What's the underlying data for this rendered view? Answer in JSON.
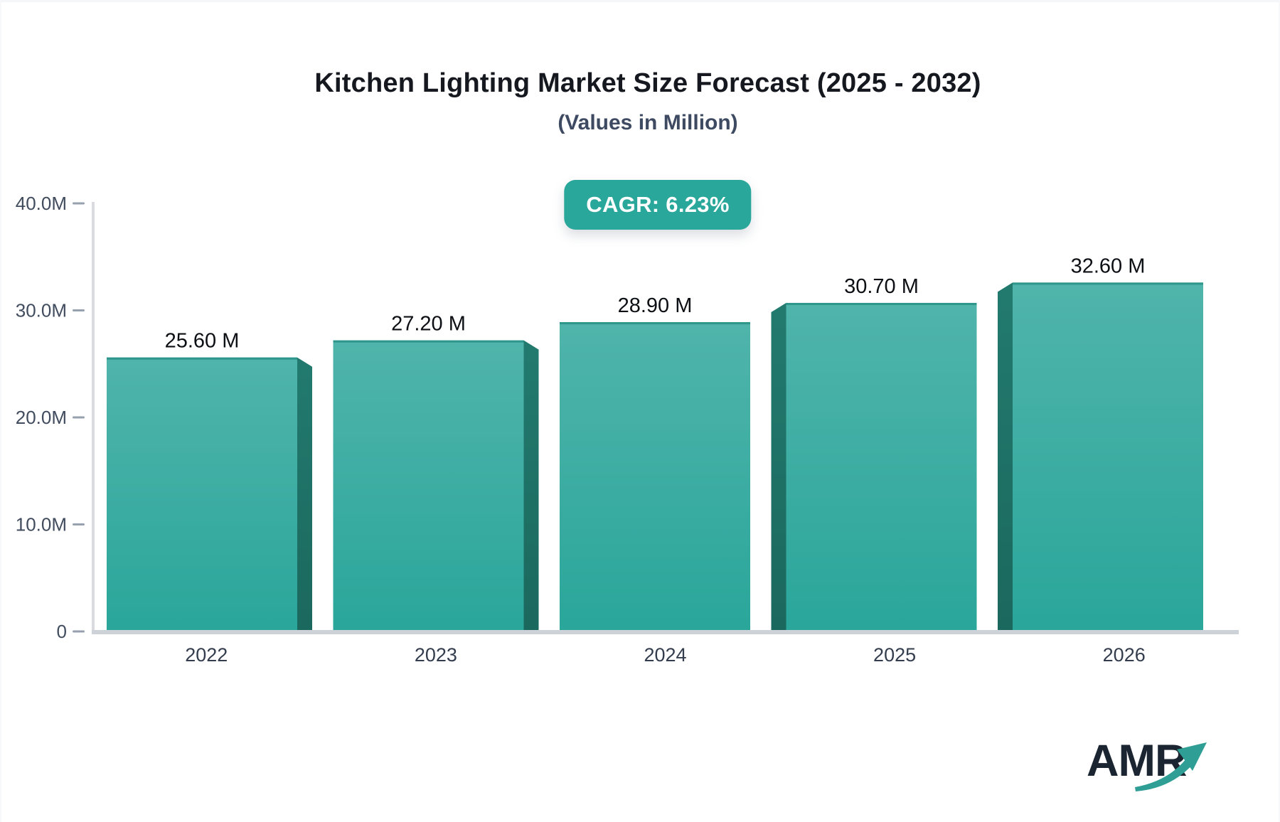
{
  "header": {
    "title": "Kitchen Lighting Market Size Forecast (2025 - 2032)",
    "subtitle": "(Values in Million)"
  },
  "badge": {
    "label": "CAGR: 6.23%",
    "bg": "#2aa79b"
  },
  "chart_data": {
    "type": "bar",
    "title": "Kitchen Lighting Market Size Forecast (2025 - 2032)",
    "subtitle": "(Values in Million)",
    "cagr": "6.23%",
    "categories": [
      "2022",
      "2023",
      "2024",
      "2025",
      "2026"
    ],
    "values": [
      25.6,
      27.2,
      28.9,
      30.7,
      32.6
    ],
    "value_labels": [
      "25.60 M",
      "27.20 M",
      "28.90 M",
      "30.70 M",
      "32.60 M"
    ],
    "unit": "Million",
    "ylim": [
      0,
      40
    ],
    "yticks": [
      {
        "v": 0,
        "label": "0"
      },
      {
        "v": 10,
        "label": "10.0M"
      },
      {
        "v": 20,
        "label": "20.0M"
      },
      {
        "v": 30,
        "label": "30.0M"
      },
      {
        "v": 40,
        "label": "40.0M"
      }
    ],
    "grid": false,
    "legend": "none",
    "bar_style": "3d-extruded-toward-center"
  },
  "colors": {
    "bar_face_top": "#50b4ab",
    "bar_face_bottom": "#2aa69a",
    "bar_top_edge": "#2e968b",
    "bar_side_top": "#227a6e",
    "bar_side_bottom": "#1b685e",
    "axis_line": "#d9dbe0",
    "baseline": "#cdd2d9",
    "tick_dash": "#97a0af",
    "ytick_text": "#414c5e",
    "xtick_text": "#333d4d",
    "value_text": "#0c0f13",
    "accent": "#2aa79b"
  },
  "logo": {
    "text": "AMR",
    "text_color": "#1b2531",
    "arrow_color": "#2f9e94"
  }
}
